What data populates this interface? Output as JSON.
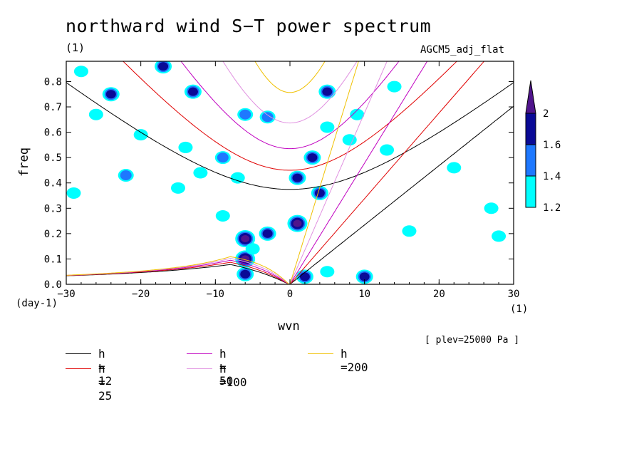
{
  "title": "northward wind S−T power spectrum",
  "unit_top": "(1)",
  "model": "AGCM5_adj_flat",
  "plev_note": "[ plev=25000 Pa ]",
  "chart_data": {
    "type": "heatmap",
    "title": "northward wind S−T power spectrum",
    "xlabel": "wvn",
    "ylabel": "freq",
    "x_unit": "(1)",
    "y_unit": "(day-1)",
    "xlim": [
      -30,
      30
    ],
    "ylim": [
      0,
      0.88
    ],
    "x_ticks": [
      -30,
      -20,
      -10,
      0,
      10,
      20,
      30
    ],
    "x_tick_labels": [
      "−30",
      "−20",
      "−10",
      "0",
      "10",
      "20",
      "30"
    ],
    "y_ticks": [
      0.0,
      0.1,
      0.2,
      0.3,
      0.4,
      0.5,
      0.6,
      0.7,
      0.8
    ],
    "y_tick_labels": [
      "0.0",
      "0.1",
      "0.2",
      "0.3",
      "0.4",
      "0.5",
      "0.6",
      "0.7",
      "0.8"
    ],
    "colorbar": {
      "levels": [
        1.2,
        1.4,
        1.6,
        2
      ],
      "labels": [
        "1.2",
        "1.4",
        "1.6",
        "2"
      ],
      "colors": [
        "#00ffff",
        "#1e78ff",
        "#0a0a96",
        "#50148c"
      ]
    },
    "contour_regions": [
      {
        "x": -6,
        "y": 0.18,
        "level": 2
      },
      {
        "x": -3,
        "y": 0.2,
        "level": 1.6
      },
      {
        "x": 1,
        "y": 0.24,
        "level": 2
      },
      {
        "x": -6,
        "y": 0.1,
        "level": 2
      },
      {
        "x": -6,
        "y": 0.04,
        "level": 1.6
      },
      {
        "x": 1,
        "y": 0.42,
        "level": 1.6
      },
      {
        "x": 3,
        "y": 0.5,
        "level": 1.6
      },
      {
        "x": 4,
        "y": 0.36,
        "level": 1.6
      },
      {
        "x": 2,
        "y": 0.03,
        "level": 1.6
      },
      {
        "x": 10,
        "y": 0.03,
        "level": 1.6
      },
      {
        "x": -24,
        "y": 0.75,
        "level": 1.6
      },
      {
        "x": -17,
        "y": 0.86,
        "level": 1.6
      },
      {
        "x": -13,
        "y": 0.76,
        "level": 1.6
      },
      {
        "x": 5,
        "y": 0.76,
        "level": 1.6
      },
      {
        "x": -22,
        "y": 0.43,
        "level": 1.4
      },
      {
        "x": -9,
        "y": 0.5,
        "level": 1.4
      },
      {
        "x": -6,
        "y": 0.67,
        "level": 1.4
      },
      {
        "x": -3,
        "y": 0.66,
        "level": 1.4
      },
      {
        "x": -28,
        "y": 0.84,
        "level": 1.2
      },
      {
        "x": -26,
        "y": 0.67,
        "level": 1.2
      },
      {
        "x": -20,
        "y": 0.59,
        "level": 1.2
      },
      {
        "x": -14,
        "y": 0.54,
        "level": 1.2
      },
      {
        "x": -12,
        "y": 0.44,
        "level": 1.2
      },
      {
        "x": -15,
        "y": 0.38,
        "level": 1.2
      },
      {
        "x": -29,
        "y": 0.36,
        "level": 1.2
      },
      {
        "x": -7,
        "y": 0.42,
        "level": 1.2
      },
      {
        "x": 5,
        "y": 0.62,
        "level": 1.2
      },
      {
        "x": 8,
        "y": 0.57,
        "level": 1.2
      },
      {
        "x": 13,
        "y": 0.53,
        "level": 1.2
      },
      {
        "x": 9,
        "y": 0.67,
        "level": 1.2
      },
      {
        "x": 14,
        "y": 0.78,
        "level": 1.2
      },
      {
        "x": 16,
        "y": 0.21,
        "level": 1.2
      },
      {
        "x": 27,
        "y": 0.3,
        "level": 1.2
      },
      {
        "x": 28,
        "y": 0.19,
        "level": 1.2
      },
      {
        "x": 22,
        "y": 0.46,
        "level": 1.2
      },
      {
        "x": -5,
        "y": 0.14,
        "level": 1.2
      },
      {
        "x": 5,
        "y": 0.05,
        "level": 1.2
      },
      {
        "x": -9,
        "y": 0.27,
        "level": 1.2
      }
    ],
    "series": [
      {
        "name": "h = 12",
        "h": 12,
        "color": "#000000",
        "width": 36
      },
      {
        "name": "h = 25",
        "h": 25,
        "color": "#e00000",
        "width": 25
      },
      {
        "name": "h = 50",
        "h": 50,
        "color": "#c000c0",
        "width": 18
      },
      {
        "name": "h =100",
        "h": 100,
        "color": "#e090e0",
        "width": 13
      },
      {
        "name": "h =200",
        "h": 200,
        "color": "#f0c000",
        "width": 9
      }
    ]
  }
}
